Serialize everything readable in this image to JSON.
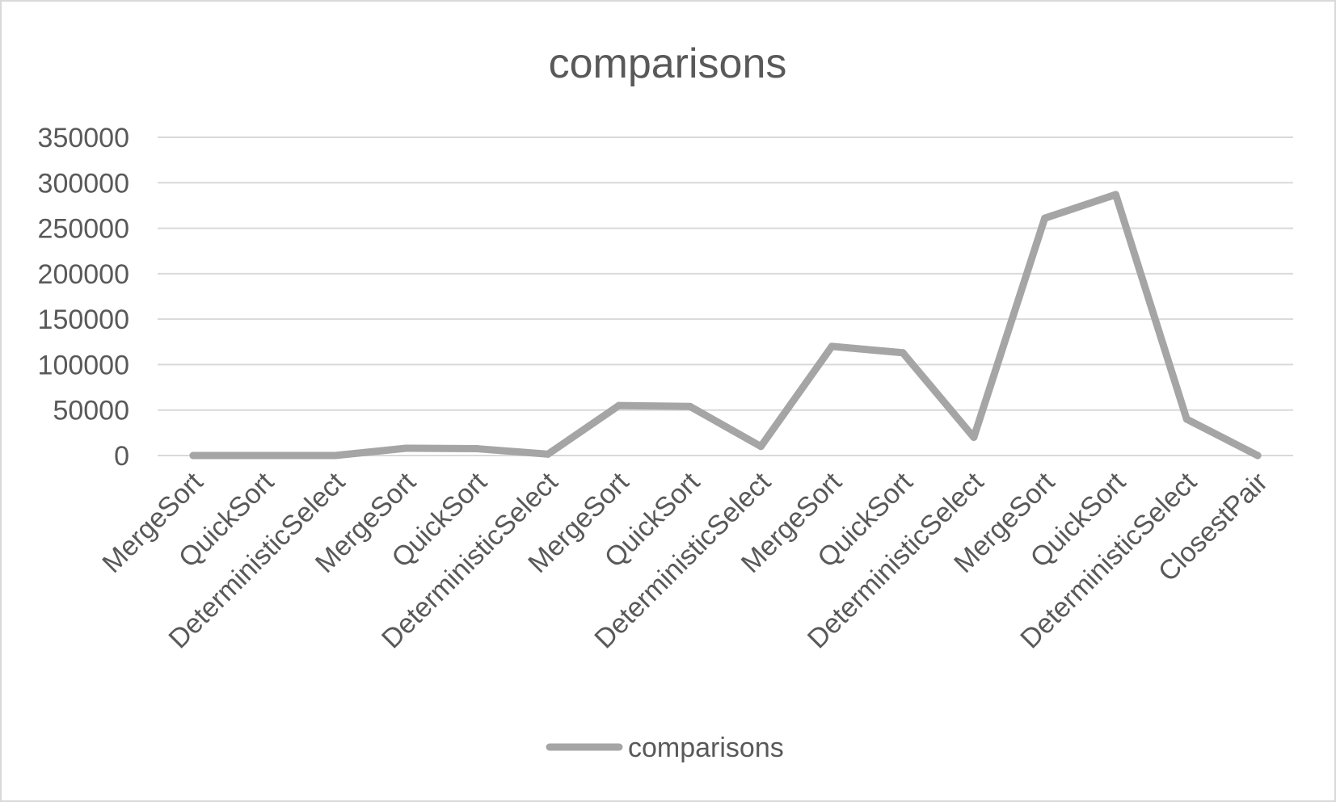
{
  "chart_data": {
    "type": "line",
    "title": "comparisons",
    "xlabel": "",
    "ylabel": "",
    "categories": [
      "MergeSort",
      "QuickSort",
      "DeterministicSelect",
      "MergeSort",
      "QuickSort",
      "DeterministicSelect",
      "MergeSort",
      "QuickSort",
      "DeterministicSelect",
      "MergeSort",
      "QuickSort",
      "DeterministicSelect",
      "MergeSort",
      "QuickSort",
      "DeterministicSelect",
      "ClosestPair"
    ],
    "series": [
      {
        "name": "comparisons",
        "color": "#a5a5a5",
        "values": [
          0,
          0,
          0,
          8000,
          7500,
          1500,
          55000,
          54000,
          10000,
          120000,
          113000,
          20000,
          261000,
          287000,
          40000,
          0
        ]
      }
    ],
    "yticks": [
      "0",
      "50000",
      "100000",
      "150000",
      "200000",
      "250000",
      "300000",
      "350000"
    ],
    "ylim": [
      0,
      350000
    ],
    "grid": true,
    "legend_position": "bottom"
  }
}
